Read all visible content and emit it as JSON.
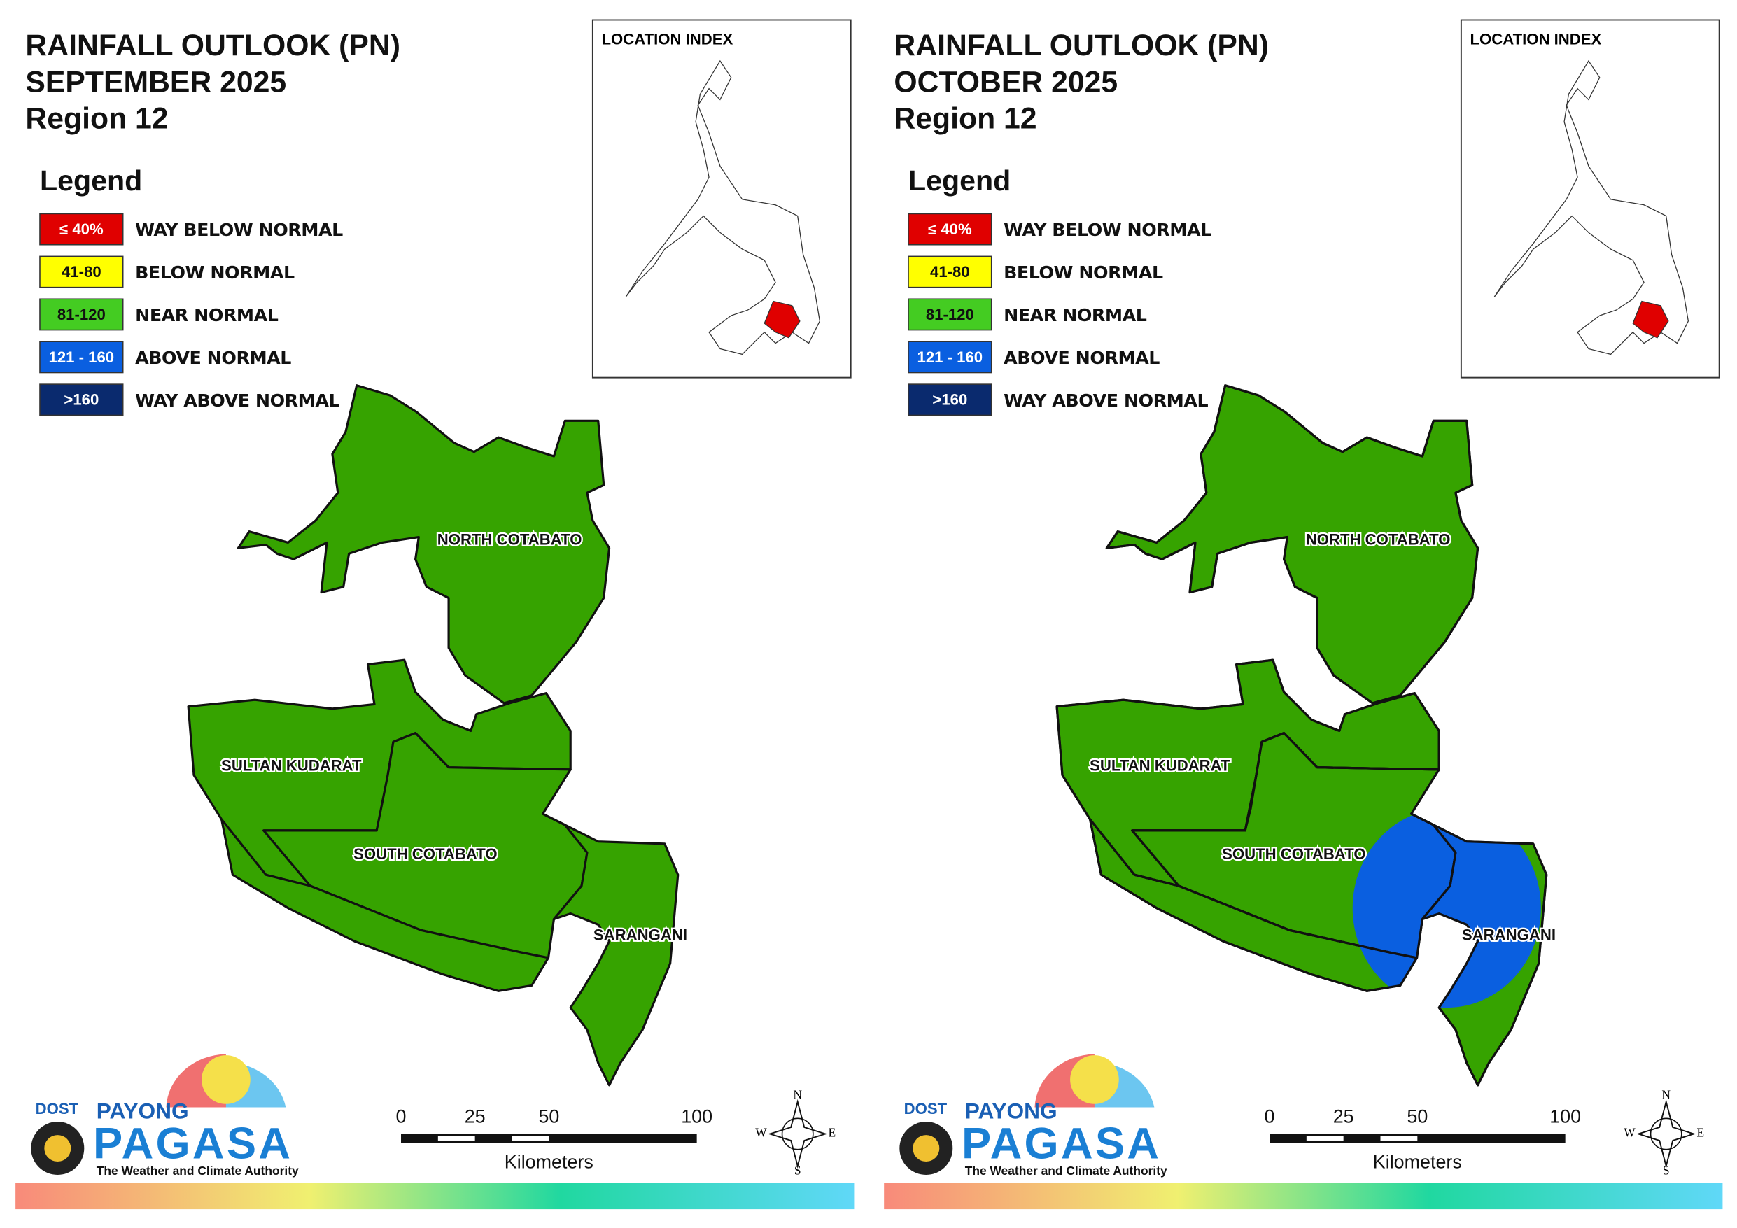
{
  "panels": [
    {
      "title": [
        "RAINFALL OUTLOOK (PN)",
        "SEPTEMBER 2025",
        "Region 12"
      ],
      "legend_title": "Legend",
      "legend": [
        {
          "range": "≤ 40%",
          "label": "WAY BELOW NORMAL",
          "color": "#e00000",
          "text_color": "#ffffff"
        },
        {
          "range": "41-80",
          "label": "BELOW NORMAL",
          "color": "#ffff00",
          "text_color": "#111111"
        },
        {
          "range": "81-120",
          "label": "NEAR NORMAL",
          "color": "#44cc22",
          "text_color": "#111111"
        },
        {
          "range": "121 - 160",
          "label": "ABOVE NORMAL",
          "color": "#0a5fe0",
          "text_color": "#ffffff"
        },
        {
          "range": ">160",
          "label": "WAY ABOVE NORMAL",
          "color": "#0a2a6e",
          "text_color": "#ffffff"
        }
      ],
      "region_color": "#36a300",
      "regions": [
        "NORTH COTABATO",
        "SULTAN KUDARAT",
        "SOUTH COTABATO",
        "SARANGANI"
      ],
      "location_index": "LOCATION INDEX",
      "scale": {
        "ticks": [
          0,
          25,
          50,
          100
        ],
        "unit": "Kilometers"
      },
      "compass": [
        "N",
        "E",
        "S",
        "W"
      ],
      "logo": {
        "dost": "DOST",
        "payong": "PAYONG",
        "pagasa": "PAGASA",
        "tagline": "The Weather and Climate Authority"
      }
    },
    {
      "title": [
        "RAINFALL OUTLOOK (PN)",
        "OCTOBER 2025",
        "Region 12"
      ],
      "legend_title": "Legend",
      "legend": [
        {
          "range": "≤ 40%",
          "label": "WAY BELOW NORMAL",
          "color": "#e00000",
          "text_color": "#ffffff"
        },
        {
          "range": "41-80",
          "label": "BELOW NORMAL",
          "color": "#ffff00",
          "text_color": "#111111"
        },
        {
          "range": "81-120",
          "label": "NEAR NORMAL",
          "color": "#44cc22",
          "text_color": "#111111"
        },
        {
          "range": "121 - 160",
          "label": "ABOVE NORMAL",
          "color": "#0a5fe0",
          "text_color": "#ffffff"
        },
        {
          "range": ">160",
          "label": "WAY ABOVE NORMAL",
          "color": "#0a2a6e",
          "text_color": "#ffffff"
        }
      ],
      "region_color": "#36a300",
      "highlight_color": "#0a5fe0",
      "regions": [
        "NORTH COTABATO",
        "SULTAN KUDARAT",
        "SOUTH COTABATO",
        "SARANGANI"
      ],
      "location_index": "LOCATION INDEX",
      "scale": {
        "ticks": [
          0,
          25,
          50,
          100
        ],
        "unit": "Kilometers"
      },
      "compass": [
        "N",
        "E",
        "S",
        "W"
      ],
      "logo": {
        "dost": "DOST",
        "payong": "PAYONG",
        "pagasa": "PAGASA",
        "tagline": "The Weather and Climate Authority"
      }
    }
  ]
}
